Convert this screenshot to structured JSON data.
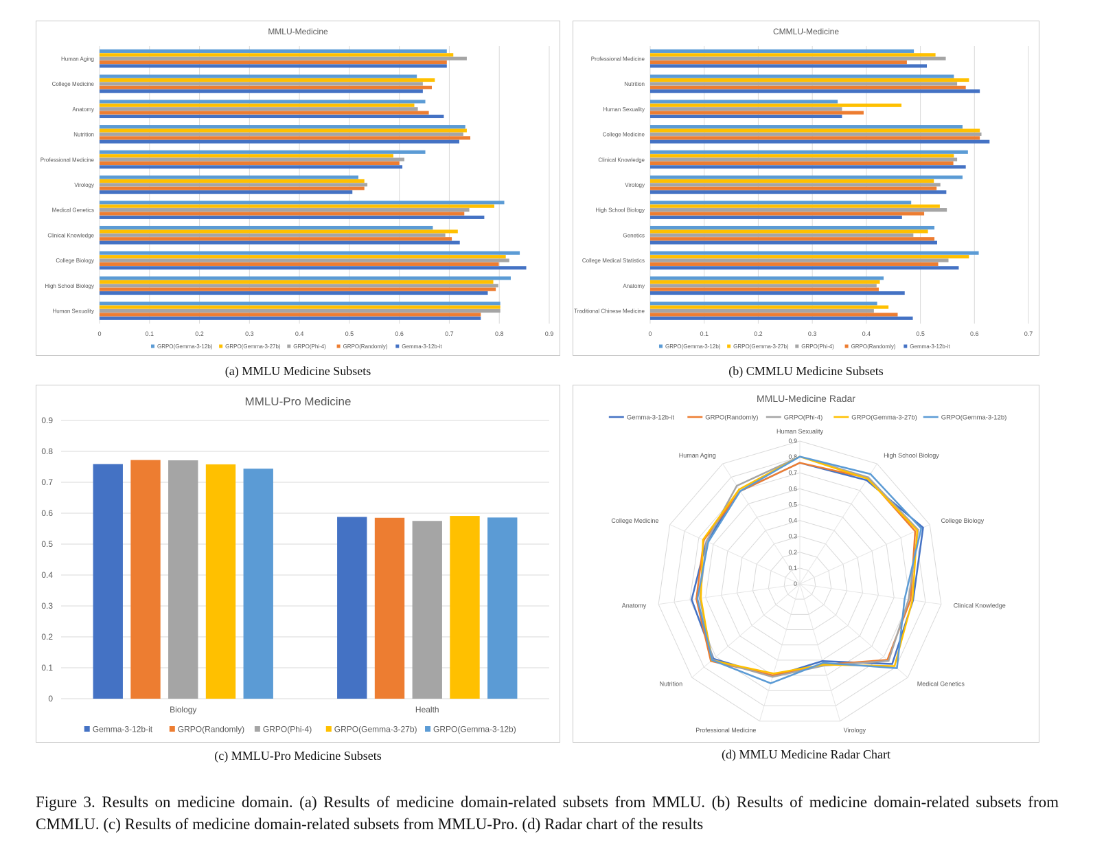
{
  "charts": {
    "a": {
      "title": "MMLU-Medicine",
      "subtitle": "(a) MMLU Medicine Subsets"
    },
    "b": {
      "title": "CMMLU-Medicine",
      "subtitle": "(b) CMMLU Medicine Subsets"
    },
    "c": {
      "title": "MMLU-Pro Medicine",
      "subtitle": "(c) MMLU-Pro Medicine Subsets"
    },
    "d": {
      "title": "MMLU-Medicine Radar",
      "subtitle": "(d) MMLU Medicine Radar Chart"
    }
  },
  "figure_caption": "Figure 3. Results on medicine domain. (a) Results of medicine domain-related subsets from MMLU. (b) Results of medicine domain-related subsets from CMMLU. (c) Results of medicine domain-related subsets from MMLU-Pro. (d) Radar chart of the results",
  "colors": {
    "Gemma-3-12b-it": "#4472C4",
    "GRPO(Randomly)": "#ED7D31",
    "GRPO(Phi-4)": "#A5A5A5",
    "GRPO(Gemma-3-27b)": "#FFC000",
    "GRPO(Gemma-3-12b)": "#5B9BD5"
  },
  "chart_data": [
    {
      "type": "bar",
      "orientation": "horizontal",
      "title": "MMLU-Medicine",
      "categories": [
        "Human Aging",
        "College Medicine",
        "Anatomy",
        "Nutrition",
        "Professional Medicine",
        "Virology",
        "Medical Genetics",
        "Clinical Knowledge",
        "College Biology",
        "High School Biology",
        "Human Sexuality"
      ],
      "series": [
        {
          "name": "GRPO(Gemma-3-12b)",
          "values": [
            0.695,
            0.635,
            0.652,
            0.732,
            0.652,
            0.518,
            0.81,
            0.667,
            0.841,
            0.823,
            0.802
          ]
        },
        {
          "name": "GRPO(Gemma-3-27b)",
          "values": [
            0.708,
            0.671,
            0.63,
            0.735,
            0.588,
            0.53,
            0.79,
            0.717,
            0.813,
            0.788,
            0.802
          ]
        },
        {
          "name": "GRPO(Phi-4)",
          "values": [
            0.735,
            0.647,
            0.637,
            0.728,
            0.61,
            0.536,
            0.74,
            0.692,
            0.82,
            0.798,
            0.802
          ]
        },
        {
          "name": "GRPO(Randomly)",
          "values": [
            0.695,
            0.665,
            0.659,
            0.742,
            0.6,
            0.53,
            0.73,
            0.705,
            0.799,
            0.793,
            0.763
          ]
        },
        {
          "name": "Gemma-3-12b-it",
          "values": [
            0.695,
            0.647,
            0.689,
            0.72,
            0.606,
            0.506,
            0.77,
            0.721,
            0.854,
            0.777,
            0.763
          ]
        }
      ],
      "xlim": [
        0,
        0.9
      ],
      "xticks": [
        0,
        0.1,
        0.2,
        0.3,
        0.4,
        0.5,
        0.6,
        0.7,
        0.8,
        0.9
      ],
      "legend_order": [
        "GRPO(Gemma-3-12b)",
        "GRPO(Gemma-3-27b)",
        "GRPO(Phi-4)",
        "GRPO(Randomly)",
        "Gemma-3-12b-it"
      ],
      "legend": "bottom",
      "grid": true
    },
    {
      "type": "bar",
      "orientation": "horizontal",
      "title": "CMMLU-Medicine",
      "categories": [
        "Professional Medicine",
        "Nutrition",
        "Human Sexuality",
        "College Medicine",
        "Clinical Knowledge",
        "Virology",
        "High School Biology",
        "Genetics",
        "College Medical Statistics",
        "Anatomy",
        "Traditional Chinese Medicine"
      ],
      "series": [
        {
          "name": "GRPO(Gemma-3-12b)",
          "values": [
            0.488,
            0.562,
            0.347,
            0.578,
            0.588,
            0.578,
            0.483,
            0.526,
            0.608,
            0.432,
            0.42
          ]
        },
        {
          "name": "GRPO(Gemma-3-27b)",
          "values": [
            0.528,
            0.59,
            0.465,
            0.61,
            0.562,
            0.525,
            0.536,
            0.514,
            0.59,
            0.425,
            0.441
          ]
        },
        {
          "name": "GRPO(Phi-4)",
          "values": [
            0.547,
            0.568,
            0.355,
            0.613,
            0.568,
            0.537,
            0.549,
            0.487,
            0.552,
            0.419,
            0.414
          ]
        },
        {
          "name": "GRPO(Randomly)",
          "values": [
            0.475,
            0.584,
            0.395,
            0.61,
            0.561,
            0.53,
            0.507,
            0.526,
            0.533,
            0.423,
            0.458
          ]
        },
        {
          "name": "Gemma-3-12b-it",
          "values": [
            0.512,
            0.61,
            0.355,
            0.628,
            0.584,
            0.548,
            0.466,
            0.531,
            0.571,
            0.471,
            0.486
          ]
        }
      ],
      "xlim": [
        0,
        0.7
      ],
      "xticks": [
        0,
        0.1,
        0.2,
        0.3,
        0.4,
        0.5,
        0.6,
        0.7
      ],
      "legend_order": [
        "GRPO(Gemma-3-12b)",
        "GRPO(Gemma-3-27b)",
        "GRPO(Phi-4)",
        "GRPO(Randomly)",
        "Gemma-3-12b-it"
      ],
      "legend": "bottom",
      "grid": true
    },
    {
      "type": "bar",
      "orientation": "vertical",
      "title": "MMLU-Pro Medicine",
      "categories": [
        "Biology",
        "Health"
      ],
      "series": [
        {
          "name": "Gemma-3-12b-it",
          "values": [
            0.759,
            0.588
          ]
        },
        {
          "name": "GRPO(Randomly)",
          "values": [
            0.772,
            0.585
          ]
        },
        {
          "name": "GRPO(Phi-4)",
          "values": [
            0.771,
            0.575
          ]
        },
        {
          "name": "GRPO(Gemma-3-27b)",
          "values": [
            0.758,
            0.591
          ]
        },
        {
          "name": "GRPO(Gemma-3-12b)",
          "values": [
            0.744,
            0.586
          ]
        }
      ],
      "ylim": [
        0,
        0.9
      ],
      "yticks": [
        0,
        0.1,
        0.2,
        0.3,
        0.4,
        0.5,
        0.6,
        0.7,
        0.8,
        0.9
      ],
      "legend_order": [
        "Gemma-3-12b-it",
        "GRPO(Randomly)",
        "GRPO(Phi-4)",
        "GRPO(Gemma-3-27b)",
        "GRPO(Gemma-3-12b)"
      ],
      "legend": "bottom",
      "grid": true
    },
    {
      "type": "radar",
      "title": "MMLU-Medicine Radar",
      "axes": [
        "Human Sexuality",
        "High School Biology",
        "College Biology",
        "Clinical Knowledge",
        "Medical Genetics",
        "Virology",
        "Professional Medicine",
        "Nutrition",
        "Anatomy",
        "College Medicine",
        "Human Aging"
      ],
      "series": [
        {
          "name": "Gemma-3-12b-it",
          "values": [
            0.763,
            0.777,
            0.854,
            0.721,
            0.77,
            0.506,
            0.606,
            0.72,
            0.689,
            0.647,
            0.695
          ]
        },
        {
          "name": "GRPO(Randomly)",
          "values": [
            0.763,
            0.793,
            0.799,
            0.705,
            0.73,
            0.53,
            0.6,
            0.742,
            0.659,
            0.665,
            0.695
          ]
        },
        {
          "name": "GRPO(Phi-4)",
          "values": [
            0.802,
            0.798,
            0.82,
            0.692,
            0.74,
            0.536,
            0.61,
            0.728,
            0.637,
            0.647,
            0.735
          ]
        },
        {
          "name": "GRPO(Gemma-3-27b)",
          "values": [
            0.802,
            0.788,
            0.813,
            0.717,
            0.79,
            0.53,
            0.588,
            0.735,
            0.63,
            0.671,
            0.708
          ]
        },
        {
          "name": "GRPO(Gemma-3-12b)",
          "values": [
            0.802,
            0.823,
            0.841,
            0.667,
            0.81,
            0.518,
            0.652,
            0.732,
            0.652,
            0.635,
            0.695
          ]
        }
      ],
      "rlim": [
        0,
        0.9
      ],
      "rticks": [
        0,
        0.1,
        0.2,
        0.3,
        0.4,
        0.5,
        0.6,
        0.7,
        0.8,
        0.9
      ],
      "legend_order": [
        "Gemma-3-12b-it",
        "GRPO(Randomly)",
        "GRPO(Phi-4)",
        "GRPO(Gemma-3-27b)",
        "GRPO(Gemma-3-12b)"
      ],
      "legend": "top",
      "grid": true
    }
  ]
}
